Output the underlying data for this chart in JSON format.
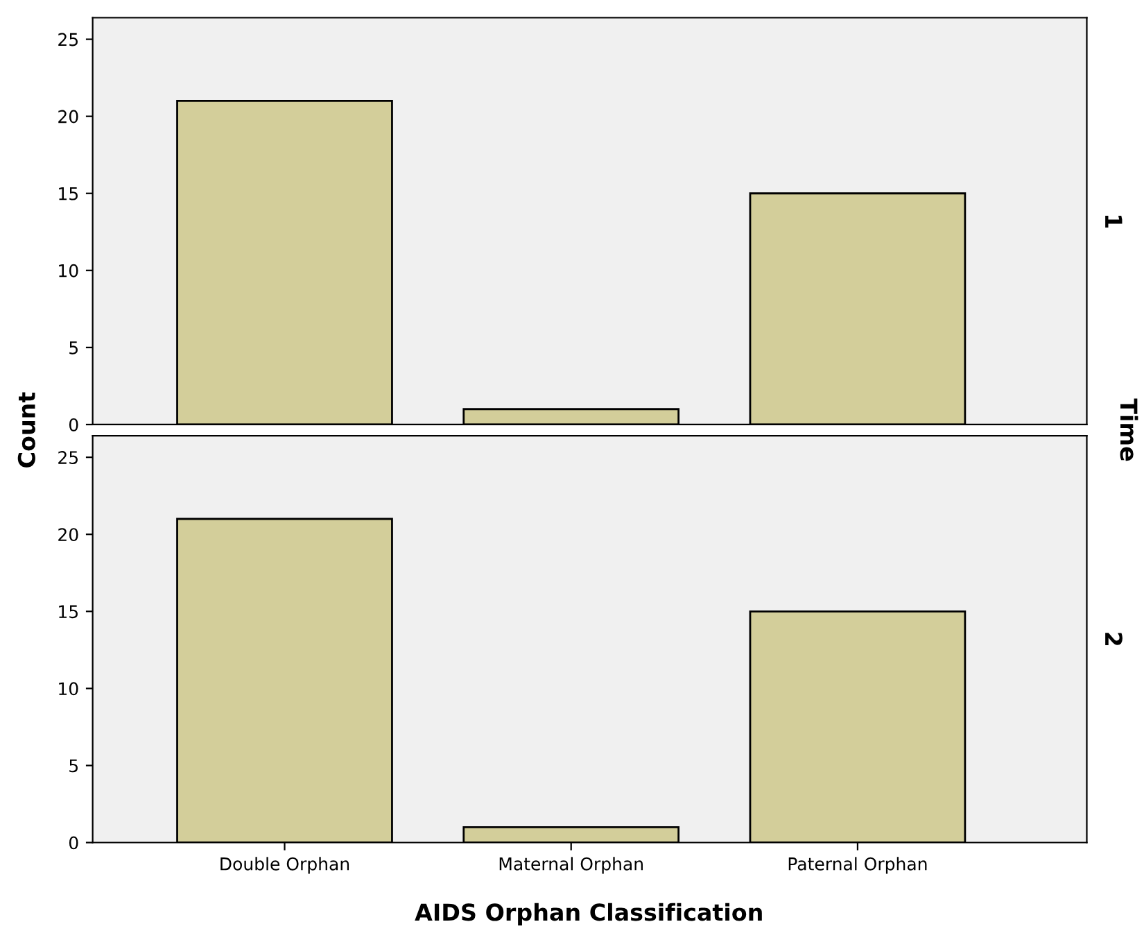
{
  "chart_data": [
    {
      "type": "bar",
      "categories": [
        null,
        null,
        null
      ],
      "values": [
        21,
        1,
        15
      ],
      "color": "#d3ce9a",
      "ylabel": "Count",
      "ylim": [
        0,
        26.4
      ],
      "yticks": [
        0,
        5,
        10,
        15,
        20,
        25
      ],
      "tick_labels": "y",
      "grid": false,
      "annotations": [
        "1",
        "Time"
      ]
    },
    {
      "type": "bar",
      "categories": [
        "Double Orphan",
        "Maternal Orphan",
        "Paternal Orphan"
      ],
      "values": [
        21,
        1,
        15
      ],
      "color": "#d3ce9a",
      "xlabel": "AIDS Orphan Classification",
      "ylim": [
        0,
        26.4
      ],
      "yticks": [
        0,
        5,
        10,
        15,
        20,
        25
      ],
      "grid": false,
      "annotations": [
        "2"
      ]
    }
  ]
}
